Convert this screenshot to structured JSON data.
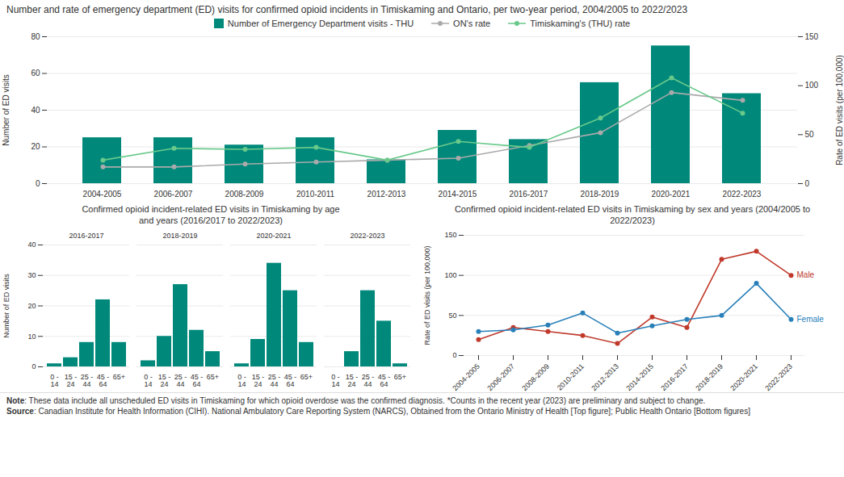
{
  "chart_data": [
    {
      "type": "bar",
      "title": "Number and rate of emergency department (ED) visits for confirmed opioid incidents in Timiskaming and Ontario, per two-year period, 2004/2005 to 2022/2023",
      "categories": [
        "2004-2005",
        "2006-2007",
        "2008-2009",
        "2010-2011",
        "2012-2013",
        "2014-2015",
        "2016-2017",
        "2018-2019",
        "2020-2021",
        "2022-2023"
      ],
      "series": [
        {
          "name": "Number of Emergency Department visits - THU",
          "type": "bar",
          "color": "#00897b",
          "values": [
            25,
            25,
            21,
            25,
            13,
            29,
            24,
            55,
            75,
            49
          ]
        },
        {
          "name": "ON's rate",
          "type": "line",
          "axis": "y2",
          "color": "#aaaaaa",
          "marker": "circle",
          "values": [
            17,
            17,
            20,
            22,
            24,
            26,
            39,
            52,
            93,
            85
          ]
        },
        {
          "name": "Timiskaming's (THU) rate",
          "type": "line",
          "axis": "y2",
          "color": "#69c98a",
          "marker": "circle",
          "values": [
            24,
            36,
            35,
            37,
            24,
            43,
            37,
            67,
            108,
            72
          ]
        }
      ],
      "ylabel": "Number of ED visits",
      "y2label": "Rate of ED visits (per 100,000)",
      "ylim": [
        0,
        80
      ],
      "yticks": [
        0,
        20,
        40,
        60,
        80
      ],
      "y2lim": [
        0,
        150
      ],
      "y2ticks": [
        0,
        50,
        100,
        150
      ],
      "grid": true,
      "legend": "top",
      "annotations": [
        "Note: These data include all unscheduled ED visits in Timiskaming for which opioid overdose was the confirmed diagnosis. *Counts in the recent year (2023) are preliminary and subject to change.",
        "Source: Canadian Institute for Health Information (CIHI). National Ambulatory Care Reporting System (NARCS), Obtained from the Ontario Ministry of Health  [Top figure]; Public Health Ontario [Bottom figures]"
      ]
    },
    {
      "type": "bar",
      "title": "Confirmed opioid incident-related ED visits in Timiskaming by age\nand years (2016/2017 to 2022/2023)",
      "categories": [
        "2016-2017",
        "2018-2019",
        "2020-2021",
        "2022-2023"
      ],
      "series": [
        {
          "name": "0 - 14",
          "values": [
            1,
            2,
            1,
            0
          ]
        },
        {
          "name": "15 - 24",
          "values": [
            3,
            10,
            9,
            5
          ]
        },
        {
          "name": "25 - 44",
          "values": [
            8,
            27,
            34,
            25
          ]
        },
        {
          "name": "45 - 64",
          "values": [
            22,
            12,
            25,
            15
          ]
        },
        {
          "name": "65+",
          "values": [
            8,
            5,
            8,
            1
          ]
        }
      ],
      "color": "#00897b",
      "ylabel": "Number of ED visits",
      "ylim": [
        0,
        40
      ],
      "yticks": [
        0,
        10,
        20,
        30,
        40
      ],
      "grid": true
    },
    {
      "type": "line",
      "title": "Confirmed opioid incident-related ED visits in Timiskaming by sex and years (2004/2005 to\n2022/2023)",
      "categories": [
        "2004-2005",
        "2006-2007",
        "2008-2009",
        "2010-2011",
        "2012-2013",
        "2014-2015",
        "2016-2017",
        "2018-2019",
        "2020-2021",
        "2022-2023"
      ],
      "series": [
        {
          "name": "Male",
          "color": "#c0392b",
          "marker": "circle",
          "values": [
            20,
            35,
            30,
            25,
            15,
            48,
            35,
            120,
            130,
            100
          ]
        },
        {
          "name": "Female",
          "color": "#2980b9",
          "marker": "circle",
          "values": [
            30,
            32,
            38,
            53,
            28,
            37,
            45,
            50,
            90,
            45
          ]
        }
      ],
      "ylabel": "Rate of ED visits (per 100,000)",
      "ylim": [
        0,
        150
      ],
      "yticks": [
        0,
        50,
        100,
        150
      ],
      "grid": true
    }
  ]
}
